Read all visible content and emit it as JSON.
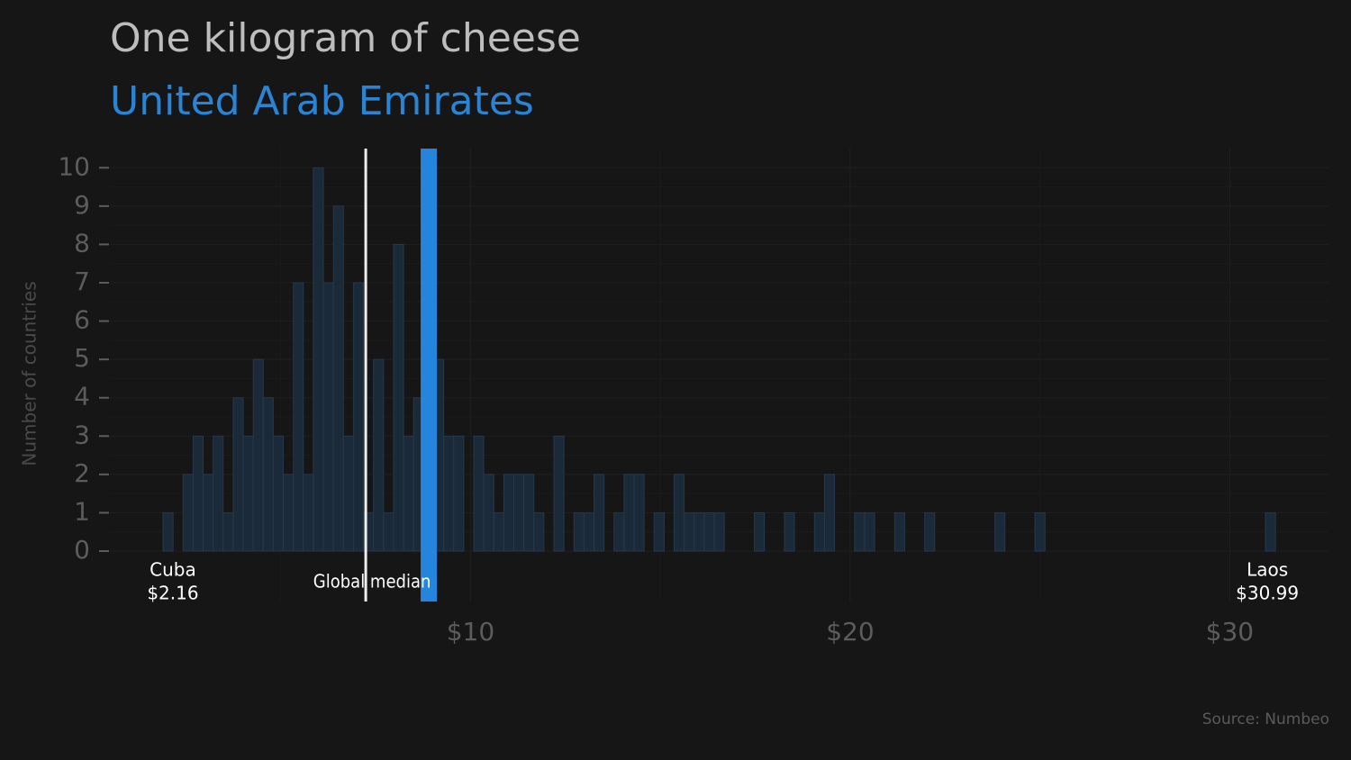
{
  "chart_data": {
    "type": "histogram",
    "title": "One kilogram of cheese",
    "subtitle": "United Arab Emirates",
    "y_label": "Number of countries",
    "source": "Source: Numbeo",
    "bins": [
      1.9,
      2.164,
      2.428,
      2.692,
      2.956,
      3.22,
      3.484,
      3.748,
      4.012,
      4.276,
      4.54,
      4.804,
      5.068,
      5.332,
      5.596,
      5.86,
      6.124,
      6.388,
      6.652,
      6.916,
      7.18,
      7.444,
      7.708,
      7.972,
      8.236,
      8.5,
      8.764,
      9.028,
      9.292,
      9.556,
      9.82,
      10.084,
      10.348,
      10.612,
      10.876,
      11.14,
      11.404,
      11.668,
      11.932,
      12.196,
      12.46,
      12.724,
      12.988,
      13.252,
      13.516,
      13.78,
      14.044,
      14.308,
      14.572,
      14.836,
      15.1,
      15.364,
      15.628,
      15.892,
      16.156,
      16.42,
      16.684,
      16.948,
      17.212,
      17.476,
      17.74,
      18.004,
      18.268,
      18.532,
      18.796,
      19.06,
      19.324,
      19.588,
      19.852,
      20.116,
      20.38,
      20.644,
      20.908,
      21.172,
      21.436,
      21.7,
      21.964,
      22.228,
      22.492,
      22.756,
      23.02,
      23.284,
      23.548,
      23.812,
      24.076,
      24.34,
      24.604,
      24.868,
      25.132,
      25.396,
      25.66,
      25.924,
      26.188,
      26.452,
      26.716,
      26.98,
      27.244,
      27.508,
      27.772,
      28.036,
      28.3,
      28.564,
      28.828,
      29.092,
      29.356,
      29.62,
      29.884,
      30.148,
      30.412,
      30.676,
      30.94,
      31.204
    ],
    "counts": [
      1,
      0,
      2,
      3,
      2,
      3,
      1,
      4,
      3,
      5,
      4,
      3,
      2,
      7,
      2,
      10,
      7,
      9,
      3,
      7,
      1,
      5,
      1,
      8,
      3,
      4,
      2,
      5,
      3,
      3,
      0,
      3,
      2,
      1,
      2,
      2,
      2,
      1,
      0,
      3,
      0,
      1,
      1,
      2,
      0,
      1,
      2,
      2,
      0,
      1,
      0,
      2,
      1,
      1,
      1,
      1,
      0,
      0,
      0,
      1,
      0,
      0,
      1,
      0,
      0,
      1,
      2,
      0,
      0,
      1,
      1,
      0,
      0,
      1,
      0,
      0,
      1,
      0,
      0,
      0,
      0,
      0,
      0,
      1,
      0,
      0,
      0,
      1,
      0,
      0,
      0,
      0,
      0,
      0,
      0,
      0,
      0,
      0,
      0,
      0,
      0,
      0,
      0,
      0,
      0,
      0,
      0,
      0,
      0,
      0,
      1
    ],
    "color": "#1b2a39",
    "highlight": {
      "value": 8.9,
      "color": "#2585dd"
    },
    "median": {
      "label": "Global median",
      "value": 7.24,
      "color": "#eeeeee"
    },
    "min": {
      "name": "Cuba",
      "value": 2.16,
      "value_label": "$2.16"
    },
    "max": {
      "name": "Laos",
      "value": 30.99,
      "value_label": "$30.99"
    },
    "xlim": [
      0.5,
      32.6
    ],
    "xticks": [
      {
        "value": 10,
        "label": "$10"
      },
      {
        "value": 20,
        "label": "$20"
      },
      {
        "value": 30,
        "label": "$30"
      }
    ],
    "ylim": [
      0,
      10.5
    ],
    "yticks": [
      0,
      1,
      2,
      3,
      4,
      5,
      6,
      7,
      8,
      9,
      10
    ],
    "grid": true
  }
}
